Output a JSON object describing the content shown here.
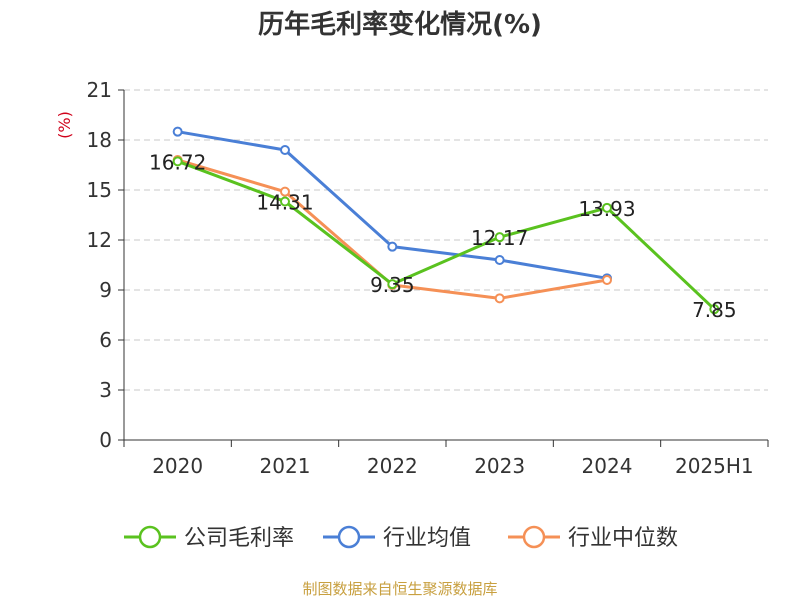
{
  "chart_data": {
    "type": "line",
    "title": "历年毛利率变化情况(%)",
    "ylabel": "(%)",
    "xlabel": "",
    "categories": [
      "2020",
      "2021",
      "2022",
      "2023",
      "2024",
      "2025H1"
    ],
    "ylim": [
      0,
      21
    ],
    "yticks": [
      0,
      3,
      6,
      9,
      12,
      15,
      18,
      21
    ],
    "grid": true,
    "legend_position": "bottom",
    "series": [
      {
        "name": "公司毛利率",
        "color": "#5ac21f",
        "values": [
          16.72,
          14.31,
          9.35,
          12.17,
          13.93,
          7.85
        ],
        "labels": [
          "16.72",
          "14.31",
          "9.35",
          "12.17",
          "13.93",
          "7.85"
        ]
      },
      {
        "name": "行业均值",
        "color": "#4a7fd6",
        "values": [
          18.5,
          17.4,
          11.6,
          10.8,
          9.7,
          null
        ]
      },
      {
        "name": "行业中位数",
        "color": "#f59056",
        "values": [
          16.8,
          14.9,
          9.3,
          8.5,
          9.6,
          null
        ]
      }
    ]
  },
  "source": "制图数据来自恒生聚源数据库"
}
